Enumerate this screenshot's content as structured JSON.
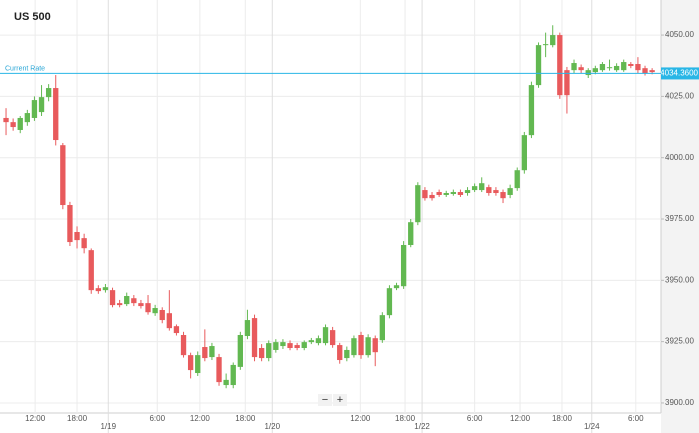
{
  "chart_data": {
    "type": "candlestick",
    "title": "US 500",
    "up_color": "#62b851",
    "down_color": "#e85a5c",
    "open": [
      4016.2,
      4014.5,
      4011.3,
      4014.5,
      4016.2,
      4018.6,
      4024.7,
      4028.4,
      4005.1,
      3980.7,
      3969.7,
      3967.2,
      3962.3,
      3946.8,
      3946.0,
      3946.0,
      3940.7,
      3940.3,
      3942.7,
      3940.7,
      3940.7,
      3936.6,
      3937.9,
      3936.6,
      3931.3,
      3927.7,
      3919.5,
      3912.2,
      3922.8,
      3918.7,
      3918.7,
      3907.3,
      3907.3,
      3914.7,
      3927.3,
      3934.6,
      3922.4,
      3918.3,
      3921.6,
      3923.2,
      3924.4,
      3923.6,
      3922.4,
      3924.8,
      3924.4,
      3924.4,
      3929.7,
      3923.6,
      3918.3,
      3919.5,
      3927.7,
      3919.5,
      3926.4,
      3925.6,
      3935.8,
      3946.8,
      3947.6,
      3964.4,
      3973.7,
      3986.8,
      3984.8,
      3986.0,
      3984.8,
      3985.2,
      3986.0,
      3985.6,
      3986.8,
      3986.8,
      3988.0,
      3986.8,
      3986.0,
      3984.8,
      3987.6,
      3994.9,
      4009.2,
      4029.6,
      4045.9,
      4045.9,
      4050.0,
      4035.7,
      4035.7,
      4036.9,
      4033.7,
      4034.9,
      4035.7,
      4036.5,
      4035.7,
      4035.7,
      4038.2,
      4038.2,
      4036.5,
      4035.7
    ],
    "high": [
      4020.2,
      4016,
      4017,
      4019.5,
      4025,
      4029.6,
      4030,
      4033.7,
      4006,
      3982,
      3972,
      3969,
      3963,
      3948,
      3948.5,
      3947,
      3942,
      3945,
      3944,
      3942,
      3944,
      3940,
      3939,
      3946,
      3932,
      3929,
      3920.5,
      3921,
      3930,
      3924.5,
      3920,
      3912,
      3916.5,
      3929,
      3938,
      3936,
      3924,
      3925.5,
      3926,
      3926,
      3925.5,
      3924.5,
      3925.5,
      3926.5,
      3927.5,
      3932,
      3931,
      3924.5,
      3923,
      3927.5,
      3929,
      3928,
      3927.5,
      3937,
      3948,
      3949,
      3966,
      3975,
      3990,
      3988,
      3986,
      3987,
      3986.5,
      3987,
      3987,
      3988,
      3989.5,
      3992,
      3989,
      3988,
      3987,
      3989,
      3996,
      4010.5,
      4031,
      4047,
      4051,
      4054,
      4051,
      4037,
      4040,
      4038,
      4036.5,
      4037.5,
      4039,
      4040,
      4038.5,
      4040,
      4039,
      4041,
      4037.5,
      4036.5
    ],
    "low": [
      4009.2,
      4011,
      4010,
      4013,
      4015,
      4017,
      4023,
      4005,
      3979,
      3964,
      3963,
      3961,
      3944.5,
      3944.5,
      3945,
      3939,
      3939,
      3939.5,
      3939.5,
      3938.5,
      3936,
      3935.5,
      3932.5,
      3929.5,
      3927.5,
      3918.5,
      3910,
      3911,
      3917,
      3917.5,
      3907,
      3906,
      3906,
      3913.5,
      3926,
      3917,
      3917,
      3917,
      3920.5,
      3922,
      3921.5,
      3921.5,
      3921.5,
      3924,
      3923.5,
      3923.5,
      3922.5,
      3916,
      3917,
      3918.5,
      3918,
      3918.5,
      3915,
      3924.5,
      3934.5,
      3946,
      3946.5,
      3963.5,
      3972.5,
      3982.5,
      3982.5,
      3984,
      3984,
      3984.5,
      3984,
      3984.5,
      3986,
      3986,
      3984.5,
      3984.5,
      3981.5,
      3983.5,
      3986.5,
      3993.5,
      4008,
      4028.5,
      4041,
      4045,
      4024,
      4018,
      4034.5,
      4034.5,
      4032.5,
      4034,
      4035,
      4035.5,
      4035,
      4035,
      4036.5,
      4034.5,
      4033.5,
      4034
    ],
    "close": [
      4014.5,
      4012.5,
      4016.2,
      4018.2,
      4023.5,
      4024.7,
      4028.4,
      4007.2,
      3980.7,
      3965.6,
      3966.4,
      3963.1,
      3946.0,
      3945.6,
      3947.2,
      3939.9,
      3939.9,
      3943.6,
      3940.7,
      3939.5,
      3937.0,
      3938.7,
      3933.8,
      3930.5,
      3928.5,
      3919.5,
      3913.4,
      3919.5,
      3918.3,
      3923.2,
      3908.5,
      3909.4,
      3915.5,
      3927.7,
      3933.8,
      3918.7,
      3918.3,
      3924.4,
      3924.8,
      3924.8,
      3922.4,
      3922.4,
      3924.8,
      3925.6,
      3926.4,
      3930.9,
      3923.6,
      3917.5,
      3921.6,
      3926.4,
      3919.5,
      3926.8,
      3920.7,
      3935.8,
      3946.8,
      3948.0,
      3964.4,
      3973.7,
      3988.8,
      3983.5,
      3983.5,
      3984.8,
      3985.6,
      3986.0,
      3984.8,
      3986.8,
      3988.4,
      3989.6,
      3985.6,
      3985.6,
      3983.5,
      3987.6,
      3994.9,
      4009.2,
      4029.6,
      4045.9,
      4046.3,
      4050.0,
      4025.5,
      4025.5,
      4038.6,
      4035.7,
      4035.7,
      4036.5,
      4038.2,
      4036.9,
      4037.4,
      4039.0,
      4037.4,
      4035.7,
      4034.5,
      4034.9
    ],
    "xlim": [
      -0.85,
      92.25
    ],
    "ylim": [
      3895.9,
      4064.3
    ],
    "yticks": [
      {
        "value": 4050,
        "label": "4050.00"
      },
      {
        "value": 4025,
        "label": "4025.00"
      },
      {
        "value": 4000,
        "label": "4000.00"
      },
      {
        "value": 3975,
        "label": "3975.00"
      },
      {
        "value": 3950,
        "label": "3950.00"
      },
      {
        "value": 3925,
        "label": "3925.00"
      },
      {
        "value": 3900,
        "label": "3900.00"
      }
    ],
    "xticks": [
      {
        "value": 4.1,
        "label": "12:00"
      },
      {
        "value": 10,
        "label": "18:00"
      },
      {
        "value": 21.3,
        "label": "6:00"
      },
      {
        "value": 27.3,
        "label": "12:00"
      },
      {
        "value": 33.7,
        "label": "18:00"
      },
      {
        "value": 49.9,
        "label": "12:00"
      },
      {
        "value": 56.2,
        "label": "18:00"
      },
      {
        "value": 66,
        "label": "6:00"
      },
      {
        "value": 72.4,
        "label": "12:00"
      },
      {
        "value": 78.3,
        "label": "18:00"
      },
      {
        "value": 88.7,
        "label": "6:00"
      }
    ],
    "date_ticks": [
      {
        "value": 14.4,
        "label": "1/19"
      },
      {
        "value": 37.5,
        "label": "1/20"
      },
      {
        "value": 58.6,
        "label": "1/22"
      },
      {
        "value": 82.5,
        "label": "1/24"
      }
    ],
    "current_rate": {
      "name": "Current Rate",
      "value": 4034.36,
      "label": "4034.3600"
    },
    "zoom_controls": [
      "−",
      "+"
    ]
  }
}
